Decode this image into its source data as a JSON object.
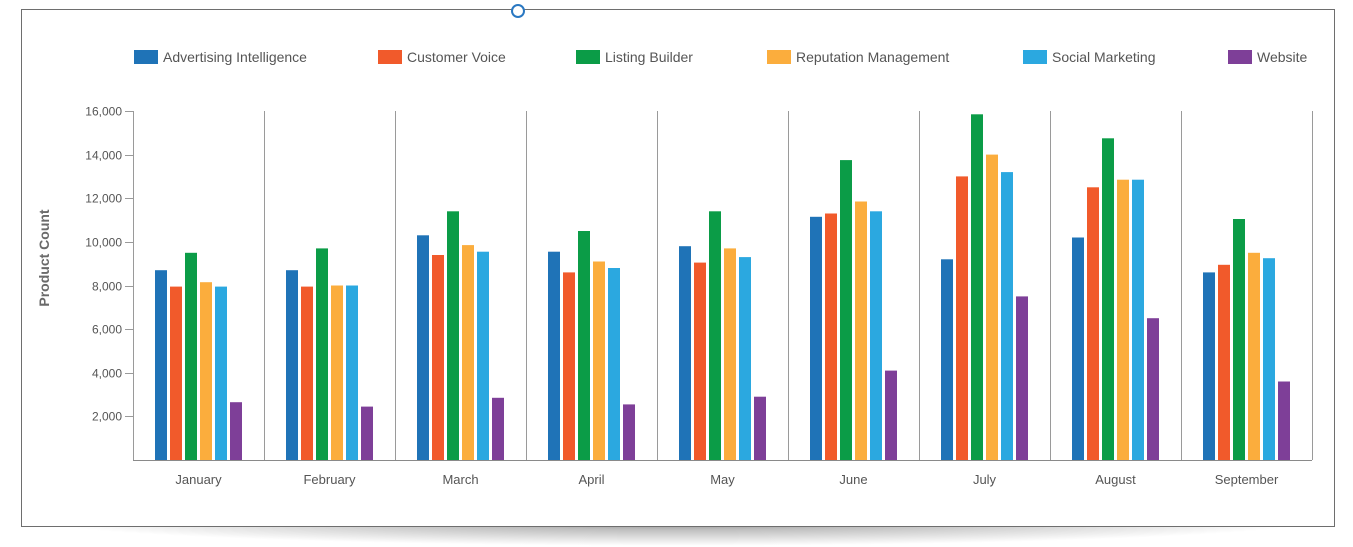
{
  "chart_data": {
    "type": "bar",
    "title": "",
    "xlabel": "",
    "ylabel": "Product Count",
    "ylim": [
      0,
      16000
    ],
    "yticks": [
      "2,000",
      "4,000",
      "6,000",
      "8,000",
      "10,000",
      "12,000",
      "14,000",
      "16,000"
    ],
    "grid": "vertical category separators",
    "legend_position": "top",
    "categories": [
      "January",
      "February",
      "March",
      "April",
      "May",
      "June",
      "July",
      "August",
      "September"
    ],
    "series": [
      {
        "name": "Advertising Intelligence",
        "color": "#1f73b7",
        "values": [
          8700,
          8700,
          10300,
          9550,
          9800,
          11150,
          9200,
          10200,
          8600
        ]
      },
      {
        "name": "Customer Voice",
        "color": "#f15a2b",
        "values": [
          7950,
          7950,
          9400,
          8600,
          9050,
          11300,
          13000,
          12500,
          8950
        ]
      },
      {
        "name": "Listing Builder",
        "color": "#0b9c47",
        "values": [
          9500,
          9700,
          11400,
          10500,
          11400,
          13750,
          15850,
          14750,
          11050
        ]
      },
      {
        "name": "Reputation Management",
        "color": "#fbad3d",
        "values": [
          8150,
          8000,
          9850,
          9100,
          9700,
          11850,
          14000,
          12850,
          9500
        ]
      },
      {
        "name": "Social Marketing",
        "color": "#2ba8e0",
        "values": [
          7950,
          8000,
          9550,
          8800,
          9300,
          11400,
          13200,
          12850,
          9250
        ]
      },
      {
        "name": "Website",
        "color": "#7e3f98",
        "values": [
          2650,
          2450,
          2850,
          2550,
          2900,
          4100,
          7500,
          6500,
          3600
        ]
      }
    ]
  }
}
